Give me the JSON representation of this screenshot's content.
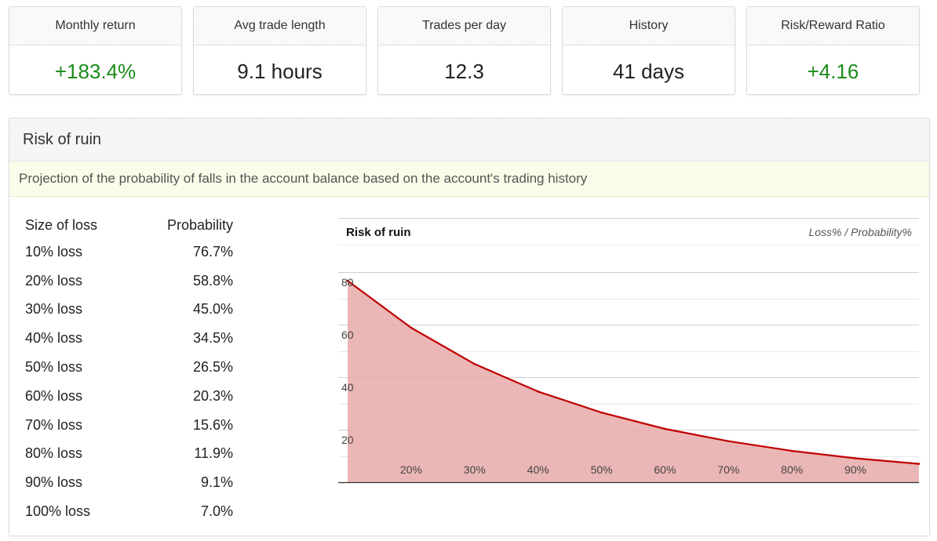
{
  "stats": [
    {
      "label": "Monthly return",
      "value": "+183.4%",
      "positive": true
    },
    {
      "label": "Avg trade length",
      "value": "9.1 hours",
      "positive": false
    },
    {
      "label": "Trades per day",
      "value": "12.3",
      "positive": false
    },
    {
      "label": "History",
      "value": "41 days",
      "positive": false
    },
    {
      "label": "Risk/Reward Ratio",
      "value": "+4.16",
      "positive": true
    }
  ],
  "panel": {
    "title": "Risk of ruin",
    "description": "Projection of the probability of falls in the account balance based on the account's trading history"
  },
  "table": {
    "headers": [
      "Size of loss",
      "Probability"
    ],
    "rows": [
      [
        "10% loss",
        "76.7%"
      ],
      [
        "20% loss",
        "58.8%"
      ],
      [
        "30% loss",
        "45.0%"
      ],
      [
        "40% loss",
        "34.5%"
      ],
      [
        "50% loss",
        "26.5%"
      ],
      [
        "60% loss",
        "20.3%"
      ],
      [
        "70% loss",
        "15.6%"
      ],
      [
        "80% loss",
        "11.9%"
      ],
      [
        "90% loss",
        "9.1%"
      ],
      [
        "100% loss",
        "7.0%"
      ]
    ]
  },
  "chart_data": {
    "type": "area",
    "title": "Risk of ruin",
    "subtitle": "Loss% / Probability%",
    "x": [
      10,
      20,
      30,
      40,
      50,
      60,
      70,
      80,
      90,
      100
    ],
    "y": [
      76.7,
      58.8,
      45.0,
      34.5,
      26.5,
      20.3,
      15.6,
      11.9,
      9.1,
      7.0
    ],
    "x_tick_labels": [
      "20%",
      "30%",
      "40%",
      "50%",
      "60%",
      "70%",
      "80%",
      "90%"
    ],
    "x_tick_values": [
      20,
      30,
      40,
      50,
      60,
      70,
      80,
      90
    ],
    "y_ticks": [
      20,
      40,
      60,
      80
    ],
    "xlim": [
      10,
      100
    ],
    "ylim": [
      0,
      80
    ],
    "grid": true,
    "line_color": "#c00000",
    "fill_color": "#e8a9a9"
  },
  "colors": {
    "positive": "#1a8c1a",
    "desc_bg": "#fbfbe9"
  }
}
